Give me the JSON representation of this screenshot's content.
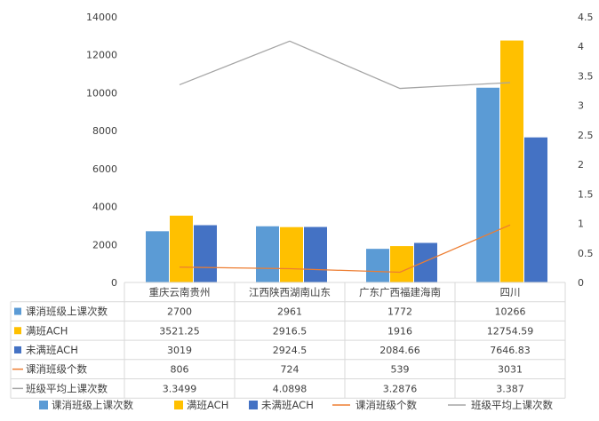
{
  "chart_data": {
    "type": "bar",
    "categories": [
      "重庆云南贵州",
      "江西陕西湖南山东",
      "广东广西福建海南",
      "四川"
    ],
    "left_axis": {
      "ticks": [
        0,
        2000,
        4000,
        6000,
        8000,
        10000,
        12000,
        14000
      ],
      "range": [
        0,
        14000
      ]
    },
    "right_axis": {
      "ticks": [
        "0",
        "0.5",
        "1",
        "1.5",
        "2",
        "2.5",
        "3",
        "3.5",
        "4",
        "4.5"
      ],
      "range": [
        0,
        4.5
      ]
    },
    "series": [
      {
        "name": "课消班级上课次数",
        "type": "bar",
        "axis": "left",
        "color": "#5B9BD5",
        "values": [
          2700,
          2961,
          1772,
          10266
        ],
        "labels": [
          "2700",
          "2961",
          "1772",
          "10266"
        ]
      },
      {
        "name": "满班ACH",
        "type": "bar",
        "axis": "left",
        "color": "#FFC000",
        "values": [
          3521.25,
          2916.5,
          1916,
          12754.59
        ],
        "labels": [
          "3521.25",
          "2916.5",
          "1916",
          "12754.59"
        ]
      },
      {
        "name": "未满班ACH",
        "type": "bar",
        "axis": "left",
        "color": "#4472C4",
        "values": [
          3019,
          2924.5,
          2084.66,
          7646.83
        ],
        "labels": [
          "3019",
          "2924.5",
          "2084.66",
          "7646.83"
        ]
      },
      {
        "name": "课消班级个数",
        "type": "line",
        "axis": "left",
        "color": "#ED7D31",
        "values": [
          806,
          724,
          539,
          3031
        ],
        "labels": [
          "806",
          "724",
          "539",
          "3031"
        ]
      },
      {
        "name": "班级平均上课次数",
        "type": "line",
        "axis": "right",
        "color": "#A5A5A5",
        "values": [
          3.3499,
          4.0898,
          3.2876,
          3.387
        ],
        "labels": [
          "3.3499",
          "4.0898",
          "3.2876",
          "3.387"
        ]
      }
    ],
    "grid": false,
    "legend": "bottom",
    "data_table": true
  }
}
